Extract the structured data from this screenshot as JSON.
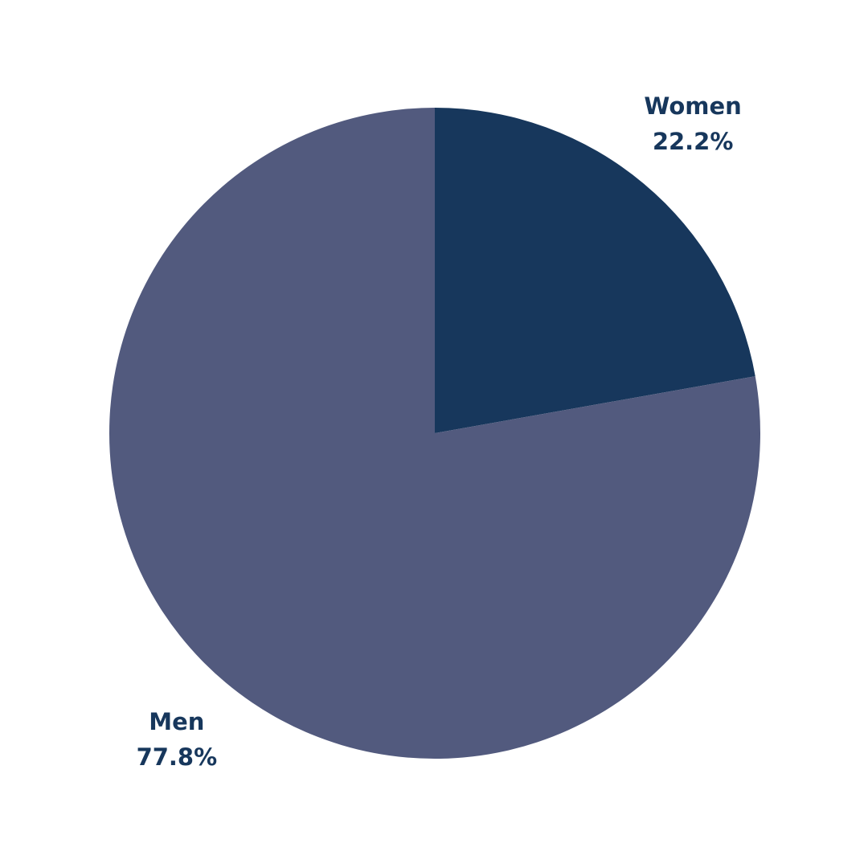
{
  "chart_data": {
    "type": "pie",
    "categories": [
      "Women",
      "Men"
    ],
    "values": [
      22.2,
      77.8
    ],
    "value_labels": [
      "22.2%",
      "77.8%"
    ],
    "colors": [
      "#17375c",
      "#525a7e"
    ]
  }
}
